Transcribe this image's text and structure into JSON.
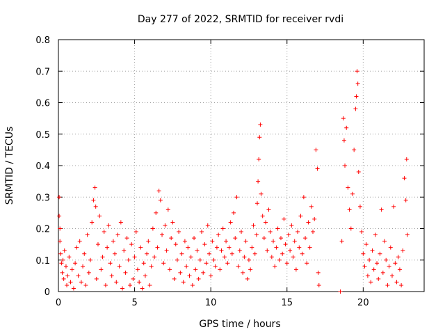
{
  "chart_data": {
    "type": "scatter",
    "title": "Day 277 of 2022, SRMTID for receiver rvdi",
    "xlabel": "GPS time / hours",
    "ylabel": "SRMTID / TECUs",
    "xlim": [
      0,
      24
    ],
    "ylim": [
      0,
      0.8
    ],
    "xticks": [
      0,
      5,
      10,
      15,
      20
    ],
    "xtick_labels": [
      "0",
      "5",
      "10",
      "15",
      "20"
    ],
    "yticks": [
      0,
      0.1,
      0.2,
      0.3,
      0.4,
      0.5,
      0.6,
      0.7,
      0.8
    ],
    "ytick_labels": [
      "0",
      "0.1",
      "0.2",
      "0.3",
      "0.4",
      "0.5",
      "0.6",
      "0.7",
      "0.8"
    ],
    "grid": true,
    "marker": "plus",
    "series": [
      {
        "name": "SRMTID",
        "color": "#ff0000",
        "points": [
          [
            0.05,
            0.3
          ],
          [
            0.05,
            0.24
          ],
          [
            0.1,
            0.2
          ],
          [
            0.1,
            0.16
          ],
          [
            0.15,
            0.12
          ],
          [
            0.2,
            0.09
          ],
          [
            0.25,
            0.06
          ],
          [
            0.3,
            0.1
          ],
          [
            0.35,
            0.04
          ],
          [
            0.4,
            0.13
          ],
          [
            0.5,
            0.08
          ],
          [
            0.55,
            0.02
          ],
          [
            0.6,
            0.05
          ],
          [
            0.7,
            0.11
          ],
          [
            0.8,
            0.03
          ],
          [
            0.9,
            0.07
          ],
          [
            1.0,
            0.01
          ],
          [
            1.1,
            0.09
          ],
          [
            1.2,
            0.14
          ],
          [
            1.3,
            0.05
          ],
          [
            1.4,
            0.16
          ],
          [
            1.5,
            0.03
          ],
          [
            1.6,
            0.08
          ],
          [
            1.7,
            0.12
          ],
          [
            1.8,
            0.02
          ],
          [
            1.9,
            0.18
          ],
          [
            2.0,
            0.06
          ],
          [
            2.1,
            0.1
          ],
          [
            2.2,
            0.22
          ],
          [
            2.3,
            0.29
          ],
          [
            2.4,
            0.33
          ],
          [
            2.45,
            0.27
          ],
          [
            2.5,
            0.04
          ],
          [
            2.6,
            0.15
          ],
          [
            2.7,
            0.24
          ],
          [
            2.8,
            0.07
          ],
          [
            2.9,
            0.11
          ],
          [
            3.0,
            0.19
          ],
          [
            3.1,
            0.02
          ],
          [
            3.2,
            0.14
          ],
          [
            3.3,
            0.21
          ],
          [
            3.4,
            0.09
          ],
          [
            3.5,
            0.05
          ],
          [
            3.6,
            0.16
          ],
          [
            3.7,
            0.12
          ],
          [
            3.8,
            0.03
          ],
          [
            3.9,
            0.18
          ],
          [
            4.0,
            0.08
          ],
          [
            4.1,
            0.22
          ],
          [
            4.2,
            0.01
          ],
          [
            4.3,
            0.13
          ],
          [
            4.4,
            0.06
          ],
          [
            4.5,
            0.17
          ],
          [
            4.6,
            0.1
          ],
          [
            4.7,
            0.02
          ],
          [
            4.8,
            0.15
          ],
          [
            4.9,
            0.04
          ],
          [
            5.0,
            0.11
          ],
          [
            5.1,
            0.19
          ],
          [
            5.2,
            0.07
          ],
          [
            5.3,
            0.03
          ],
          [
            5.4,
            0.14
          ],
          [
            5.5,
            0.01
          ],
          [
            5.6,
            0.09
          ],
          [
            5.7,
            0.05
          ],
          [
            5.8,
            0.12
          ],
          [
            5.9,
            0.16
          ],
          [
            6.0,
            0.02
          ],
          [
            6.1,
            0.08
          ],
          [
            6.2,
            0.2
          ],
          [
            6.3,
            0.11
          ],
          [
            6.4,
            0.25
          ],
          [
            6.5,
            0.14
          ],
          [
            6.6,
            0.32
          ],
          [
            6.7,
            0.29
          ],
          [
            6.8,
            0.18
          ],
          [
            6.9,
            0.09
          ],
          [
            7.0,
            0.21
          ],
          [
            7.1,
            0.13
          ],
          [
            7.2,
            0.26
          ],
          [
            7.3,
            0.07
          ],
          [
            7.4,
            0.17
          ],
          [
            7.5,
            0.22
          ],
          [
            7.6,
            0.04
          ],
          [
            7.7,
            0.15
          ],
          [
            7.8,
            0.1
          ],
          [
            7.9,
            0.19
          ],
          [
            8.0,
            0.06
          ],
          [
            8.1,
            0.12
          ],
          [
            8.2,
            0.03
          ],
          [
            8.3,
            0.16
          ],
          [
            8.4,
            0.08
          ],
          [
            8.5,
            0.14
          ],
          [
            8.6,
            0.05
          ],
          [
            8.7,
            0.11
          ],
          [
            8.8,
            0.02
          ],
          [
            8.9,
            0.17
          ],
          [
            9.0,
            0.07
          ],
          [
            9.1,
            0.13
          ],
          [
            9.2,
            0.04
          ],
          [
            9.3,
            0.1
          ],
          [
            9.4,
            0.19
          ],
          [
            9.5,
            0.06
          ],
          [
            9.6,
            0.15
          ],
          [
            9.7,
            0.09
          ],
          [
            9.8,
            0.21
          ],
          [
            9.9,
            0.12
          ],
          [
            10.0,
            0.05
          ],
          [
            10.1,
            0.16
          ],
          [
            10.2,
            0.1
          ],
          [
            10.3,
            0.08
          ],
          [
            10.4,
            0.14
          ],
          [
            10.5,
            0.18
          ],
          [
            10.6,
            0.07
          ],
          [
            10.7,
            0.13
          ],
          [
            10.8,
            0.2
          ],
          [
            10.9,
            0.11
          ],
          [
            11.0,
            0.16
          ],
          [
            11.1,
            0.09
          ],
          [
            11.2,
            0.14
          ],
          [
            11.3,
            0.22
          ],
          [
            11.4,
            0.12
          ],
          [
            11.5,
            0.25
          ],
          [
            11.6,
            0.17
          ],
          [
            11.7,
            0.3
          ],
          [
            11.8,
            0.08
          ],
          [
            11.9,
            0.13
          ],
          [
            12.0,
            0.19
          ],
          [
            12.1,
            0.06
          ],
          [
            12.2,
            0.11
          ],
          [
            12.3,
            0.16
          ],
          [
            12.4,
            0.04
          ],
          [
            12.5,
            0.1
          ],
          [
            12.6,
            0.07
          ],
          [
            12.7,
            0.14
          ],
          [
            12.8,
            0.21
          ],
          [
            12.9,
            0.12
          ],
          [
            13.0,
            0.18
          ],
          [
            13.05,
            0.28
          ],
          [
            13.1,
            0.35
          ],
          [
            13.15,
            0.42
          ],
          [
            13.2,
            0.49
          ],
          [
            13.25,
            0.53
          ],
          [
            13.3,
            0.31
          ],
          [
            13.4,
            0.24
          ],
          [
            13.5,
            0.17
          ],
          [
            13.6,
            0.22
          ],
          [
            13.7,
            0.13
          ],
          [
            13.8,
            0.26
          ],
          [
            13.9,
            0.19
          ],
          [
            14.0,
            0.11
          ],
          [
            14.1,
            0.16
          ],
          [
            14.2,
            0.08
          ],
          [
            14.3,
            0.14
          ],
          [
            14.4,
            0.2
          ],
          [
            14.5,
            0.1
          ],
          [
            14.6,
            0.17
          ],
          [
            14.7,
            0.12
          ],
          [
            14.8,
            0.23
          ],
          [
            14.9,
            0.15
          ],
          [
            15.0,
            0.09
          ],
          [
            15.1,
            0.18
          ],
          [
            15.2,
            0.13
          ],
          [
            15.3,
            0.21
          ],
          [
            15.4,
            0.11
          ],
          [
            15.5,
            0.16
          ],
          [
            15.6,
            0.07
          ],
          [
            15.7,
            0.19
          ],
          [
            15.8,
            0.14
          ],
          [
            15.9,
            0.24
          ],
          [
            16.0,
            0.12
          ],
          [
            16.1,
            0.3
          ],
          [
            16.2,
            0.17
          ],
          [
            16.3,
            0.09
          ],
          [
            16.4,
            0.22
          ],
          [
            16.5,
            0.14
          ],
          [
            16.6,
            0.27
          ],
          [
            16.7,
            0.19
          ],
          [
            16.8,
            0.23
          ],
          [
            16.9,
            0.45
          ],
          [
            17.0,
            0.39
          ],
          [
            17.05,
            0.06
          ],
          [
            17.1,
            0.02
          ],
          [
            18.5,
            0.0
          ],
          [
            18.6,
            0.16
          ],
          [
            18.7,
            0.55
          ],
          [
            18.75,
            0.48
          ],
          [
            18.8,
            0.4
          ],
          [
            18.9,
            0.52
          ],
          [
            19.0,
            0.33
          ],
          [
            19.1,
            0.26
          ],
          [
            19.2,
            0.2
          ],
          [
            19.3,
            0.31
          ],
          [
            19.4,
            0.45
          ],
          [
            19.5,
            0.58
          ],
          [
            19.55,
            0.62
          ],
          [
            19.6,
            0.7
          ],
          [
            19.65,
            0.66
          ],
          [
            19.7,
            0.38
          ],
          [
            19.8,
            0.27
          ],
          [
            19.9,
            0.19
          ],
          [
            20.0,
            0.12
          ],
          [
            20.1,
            0.08
          ],
          [
            20.2,
            0.15
          ],
          [
            20.3,
            0.05
          ],
          [
            20.4,
            0.1
          ],
          [
            20.5,
            0.03
          ],
          [
            20.6,
            0.13
          ],
          [
            20.7,
            0.07
          ],
          [
            20.8,
            0.18
          ],
          [
            20.9,
            0.09
          ],
          [
            21.0,
            0.04
          ],
          [
            21.1,
            0.12
          ],
          [
            21.2,
            0.26
          ],
          [
            21.3,
            0.06
          ],
          [
            21.4,
            0.16
          ],
          [
            21.5,
            0.1
          ],
          [
            21.6,
            0.02
          ],
          [
            21.7,
            0.08
          ],
          [
            21.8,
            0.14
          ],
          [
            21.9,
            0.05
          ],
          [
            22.0,
            0.27
          ],
          [
            22.1,
            0.09
          ],
          [
            22.2,
            0.03
          ],
          [
            22.3,
            0.11
          ],
          [
            22.4,
            0.07
          ],
          [
            22.5,
            0.02
          ],
          [
            22.6,
            0.13
          ],
          [
            22.7,
            0.36
          ],
          [
            22.8,
            0.29
          ],
          [
            22.85,
            0.42
          ],
          [
            22.9,
            0.18
          ]
        ]
      }
    ]
  }
}
